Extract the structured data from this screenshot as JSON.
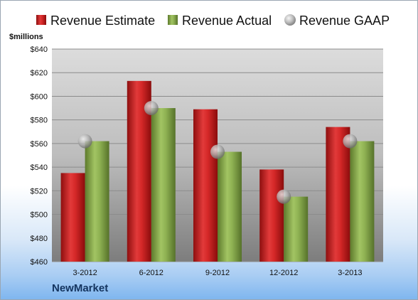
{
  "chart_data": {
    "type": "bar",
    "title": "",
    "xlabel": "",
    "ylabel": "$millions",
    "ylim": [
      460,
      640
    ],
    "yticks": [
      460,
      480,
      500,
      520,
      540,
      560,
      580,
      600,
      620,
      640
    ],
    "ytick_labels": [
      "$460",
      "$480",
      "$500",
      "$520",
      "$540",
      "$560",
      "$580",
      "$600",
      "$620",
      "$640"
    ],
    "categories": [
      "3-2012",
      "6-2012",
      "9-2012",
      "12-2012",
      "3-2013"
    ],
    "series": [
      {
        "name": "Revenue Estimate",
        "kind": "bar",
        "color": "#d42a2a",
        "values": [
          535,
          613,
          589,
          538,
          574
        ]
      },
      {
        "name": "Revenue Actual",
        "kind": "bar",
        "color": "#8aae4e",
        "values": [
          562,
          590,
          553,
          515,
          562
        ]
      },
      {
        "name": "Revenue GAAP",
        "kind": "marker",
        "color": "#a7a7a7",
        "values": [
          562,
          590,
          553,
          515,
          562
        ]
      }
    ],
    "legend_position": "top",
    "grid": true
  },
  "footer": {
    "company": "NewMarket"
  }
}
